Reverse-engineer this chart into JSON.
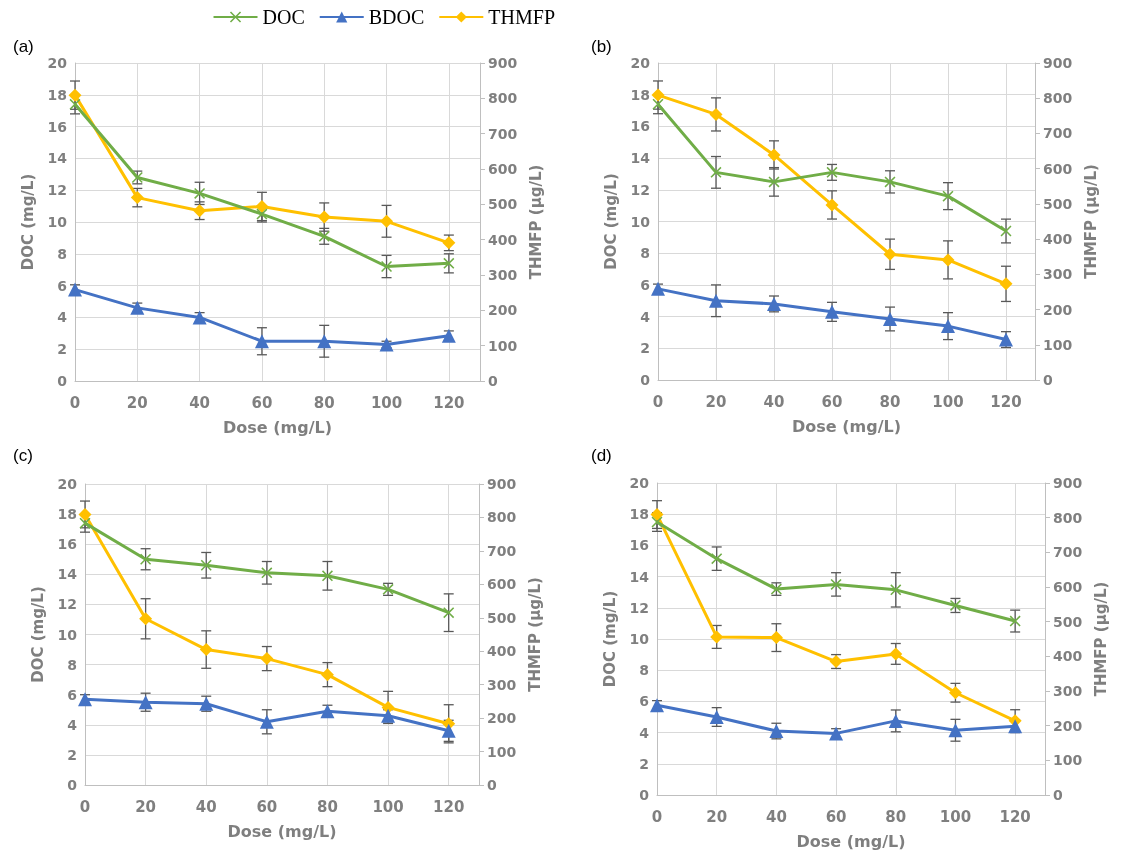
{
  "chart_data": [
    {
      "type": "line",
      "title": "(a)",
      "xlabel": "Dose (mg/L)",
      "ylabel": "DOC (mg/L)",
      "y2label": "THMFP (μg/L)",
      "x": [
        0,
        20,
        40,
        60,
        80,
        100,
        120
      ],
      "xlim": [
        0,
        130
      ],
      "xticks": [
        0,
        20,
        40,
        60,
        80,
        100,
        120
      ],
      "ylim": [
        0,
        20
      ],
      "yticks": [
        0,
        2,
        4,
        6,
        8,
        10,
        12,
        14,
        16,
        18,
        20
      ],
      "y2lim": [
        0,
        900
      ],
      "y2ticks": [
        0,
        100,
        200,
        300,
        400,
        500,
        600,
        700,
        800,
        900
      ],
      "grid": true,
      "legend": "top",
      "series": [
        {
          "name": "DOC",
          "color": "#70ad47",
          "marker": "cross",
          "values": [
            17.4,
            12.8,
            11.8,
            10.5,
            9.1,
            7.2,
            7.4
          ],
          "errors": [
            0.6,
            0.4,
            0.7,
            0.5,
            0.5,
            0.7,
            0.6
          ]
        },
        {
          "name": "BDOC",
          "color": "#4472c4",
          "marker": "triangle",
          "values": [
            5.75,
            4.6,
            4.0,
            2.5,
            2.5,
            2.3,
            2.85
          ],
          "errors": [
            0.3,
            0.3,
            0.3,
            0.85,
            1.0,
            0.2,
            0.3
          ]
        },
        {
          "name": "THMFP",
          "color": "#ffc000",
          "marker": "diamond",
          "axis": "y2",
          "values": [
            809,
            519,
            482,
            494,
            464,
            452,
            391
          ],
          "errors": [
            40,
            26,
            25,
            40,
            40,
            45,
            22
          ]
        }
      ]
    },
    {
      "type": "line",
      "title": "(b)",
      "xlabel": "Dose (mg/L)",
      "ylabel": "DOC (mg/L)",
      "y2label": "THMFP (μg/L)",
      "x": [
        0,
        20,
        40,
        60,
        80,
        100,
        120
      ],
      "xlim": [
        0,
        130
      ],
      "xticks": [
        0,
        20,
        40,
        60,
        80,
        100,
        120
      ],
      "ylim": [
        0,
        20
      ],
      "yticks": [
        0,
        2,
        4,
        6,
        8,
        10,
        12,
        14,
        16,
        18,
        20
      ],
      "y2lim": [
        0,
        900
      ],
      "y2ticks": [
        0,
        100,
        200,
        300,
        400,
        500,
        600,
        700,
        800,
        900
      ],
      "grid": true,
      "series": [
        {
          "color": "#70ad47",
          "marker": "cross",
          "values": [
            17.4,
            13.1,
            12.5,
            13.1,
            12.5,
            11.6,
            9.4
          ],
          "errors": [
            0.6,
            1.0,
            0.9,
            0.5,
            0.7,
            0.85,
            0.75
          ]
        },
        {
          "color": "#4472c4",
          "marker": "triangle",
          "values": [
            5.75,
            5.0,
            4.8,
            4.3,
            3.85,
            3.4,
            2.55
          ],
          "errors": [
            0.3,
            1.0,
            0.5,
            0.6,
            0.75,
            0.85,
            0.5
          ]
        },
        {
          "color": "#ffc000",
          "marker": "diamond",
          "axis": "y2",
          "values": [
            809,
            754,
            639,
            497,
            357,
            341,
            273
          ],
          "errors": [
            40,
            47,
            40,
            40,
            43,
            54,
            50
          ]
        }
      ]
    },
    {
      "type": "line",
      "title": "(c)",
      "xlabel": "Dose (mg/L)",
      "ylabel": "DOC (mg/L)",
      "y2label": "THMFP (μg/L)",
      "x": [
        0,
        20,
        40,
        60,
        80,
        100,
        120
      ],
      "xlim": [
        0,
        130
      ],
      "xticks": [
        0,
        20,
        40,
        60,
        80,
        100,
        120
      ],
      "ylim": [
        0,
        20
      ],
      "yticks": [
        0,
        2,
        4,
        6,
        8,
        10,
        12,
        14,
        16,
        18,
        20
      ],
      "y2lim": [
        0,
        900
      ],
      "y2ticks": [
        0,
        100,
        200,
        300,
        400,
        500,
        600,
        700,
        800,
        900
      ],
      "grid": true,
      "series": [
        {
          "color": "#70ad47",
          "marker": "cross",
          "values": [
            17.4,
            15.0,
            14.6,
            14.1,
            13.9,
            13.0,
            11.45
          ],
          "errors": [
            0.6,
            0.7,
            0.85,
            0.75,
            0.95,
            0.4,
            1.25
          ]
        },
        {
          "color": "#4472c4",
          "marker": "triangle",
          "values": [
            5.7,
            5.5,
            5.4,
            4.2,
            4.9,
            4.6,
            3.6
          ],
          "errors": [
            0.3,
            0.6,
            0.5,
            0.8,
            0.4,
            0.4,
            0.7
          ]
        },
        {
          "color": "#ffc000",
          "marker": "diamond",
          "axis": "y2",
          "values": [
            809,
            497,
            405,
            378,
            330,
            232,
            183
          ],
          "errors": [
            40,
            60,
            56,
            36,
            36,
            48,
            57
          ]
        }
      ]
    },
    {
      "type": "line",
      "title": "(d)",
      "xlabel": "Dose (mg/L)",
      "ylabel": "DOC (mg/L)",
      "y2label": "THMFP (μg/L)",
      "x": [
        0,
        20,
        40,
        60,
        80,
        100,
        120
      ],
      "xlim": [
        0,
        130
      ],
      "xticks": [
        0,
        20,
        40,
        60,
        80,
        100,
        120
      ],
      "ylim": [
        0,
        20
      ],
      "yticks": [
        0,
        2,
        4,
        6,
        8,
        10,
        12,
        14,
        16,
        18,
        20
      ],
      "y2lim": [
        0,
        900
      ],
      "y2ticks": [
        0,
        100,
        200,
        300,
        400,
        500,
        600,
        700,
        800,
        900
      ],
      "grid": true,
      "series": [
        {
          "color": "#70ad47",
          "marker": "cross",
          "values": [
            17.5,
            15.15,
            13.2,
            13.5,
            13.15,
            12.15,
            11.15
          ],
          "errors": [
            0.6,
            0.75,
            0.4,
            0.75,
            1.1,
            0.45,
            0.7
          ]
        },
        {
          "color": "#4472c4",
          "marker": "triangle",
          "values": [
            5.75,
            5.0,
            4.1,
            3.95,
            4.75,
            4.15,
            4.4
          ],
          "errors": [
            0.3,
            0.6,
            0.5,
            0.3,
            0.7,
            0.7,
            0.4
          ]
        },
        {
          "color": "#ffc000",
          "marker": "diamond",
          "axis": "y2",
          "values": [
            809,
            456,
            454,
            385,
            407,
            295,
            214
          ],
          "errors": [
            40,
            33,
            40,
            20,
            30,
            27,
            32
          ]
        }
      ]
    }
  ]
}
